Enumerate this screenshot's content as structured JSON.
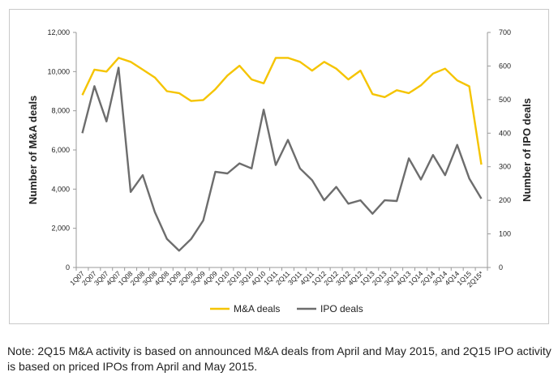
{
  "chart_data": {
    "type": "line",
    "categories": [
      "1Q07",
      "2Q07",
      "3Q07",
      "4Q07",
      "1Q08",
      "2Q08",
      "3Q08",
      "4Q08",
      "1Q09",
      "2Q09",
      "3Q09",
      "4Q09",
      "1Q10",
      "2Q10",
      "3Q10",
      "4Q10",
      "1Q11",
      "2Q11",
      "3Q11",
      "4Q11",
      "1Q12",
      "2Q12",
      "3Q12",
      "4Q12",
      "1Q13",
      "2Q13",
      "3Q13",
      "4Q13",
      "1Q14",
      "2Q14",
      "3Q14",
      "4Q14",
      "1Q15",
      "2Q15*"
    ],
    "series": [
      {
        "name": "M&A deals",
        "axis": "left",
        "color": "#f5c400",
        "values": [
          8800,
          10100,
          10000,
          10700,
          10500,
          10100,
          9700,
          9000,
          8900,
          8500,
          8550,
          9100,
          9800,
          10300,
          9600,
          9400,
          10700,
          10700,
          10500,
          10050,
          10500,
          10150,
          9600,
          10050,
          8850,
          8700,
          9050,
          8900,
          9300,
          9900,
          10150,
          9550,
          9250,
          5250
        ]
      },
      {
        "name": "IPO deals",
        "axis": "right",
        "color": "#6d6d6d",
        "values": [
          400,
          540,
          435,
          595,
          225,
          275,
          165,
          85,
          50,
          85,
          140,
          285,
          280,
          310,
          295,
          470,
          305,
          380,
          295,
          260,
          200,
          240,
          190,
          200,
          160,
          200,
          198,
          325,
          262,
          335,
          275,
          365,
          265,
          205
        ]
      }
    ],
    "ylabel_left": "Number of M&A deals",
    "ylabel_right": "Number of IPO deals",
    "ylim_left": [
      0,
      12000
    ],
    "ylim_right": [
      0,
      700
    ],
    "yticks_left": [
      "0",
      "2,000",
      "4,000",
      "6,000",
      "8,000",
      "10,000",
      "12,000"
    ],
    "yticks_right": [
      "0",
      "100",
      "200",
      "300",
      "400",
      "500",
      "600",
      "700"
    ],
    "grid": false,
    "legend": "bottom"
  },
  "note": "Note: 2Q15 M&A activity is based on announced M&A deals from April and May 2015, and 2Q15 IPO activity is based on priced IPOs from April and May 2015."
}
